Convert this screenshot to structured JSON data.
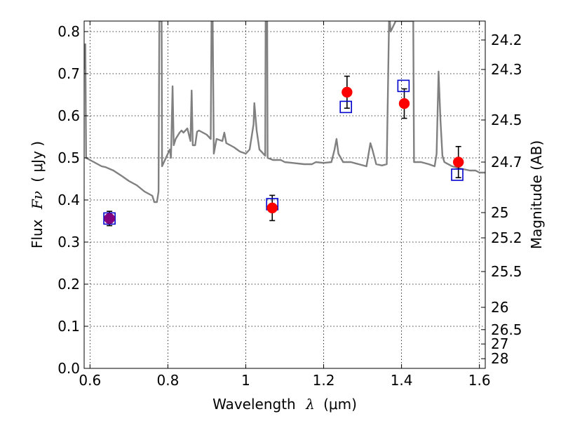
{
  "chart_data": {
    "type": "scatter",
    "title": "",
    "xlabel": "Wavelength",
    "xlabel_symbol": "λ",
    "xlabel_unit": "(μm)",
    "ylabel": "Flux",
    "ylabel_symbol": "Fν",
    "ylabel_unit": "( μJy )",
    "y2label": "Magnitude (AB)",
    "xlim": [
      0.585,
      1.615
    ],
    "ylim": [
      0.0,
      0.825
    ],
    "grid": true,
    "xticks": [
      0.6,
      0.8,
      1.0,
      1.2,
      1.4,
      1.6
    ],
    "xtick_labels": [
      "0.6",
      "0.8",
      "1",
      "1.2",
      "1.4",
      "1.6"
    ],
    "yticks": [
      0.0,
      0.1,
      0.2,
      0.3,
      0.4,
      0.5,
      0.6,
      0.7,
      0.8
    ],
    "ytick_labels": [
      "0.0",
      "0.1",
      "0.2",
      "0.3",
      "0.4",
      "0.5",
      "0.6",
      "0.7",
      "0.8"
    ],
    "magnitude_ticks": [
      {
        "label": "24.2",
        "flux": 0.78
      },
      {
        "label": "24.3",
        "flux": 0.71
      },
      {
        "label": "24.5",
        "flux": 0.59
      },
      {
        "label": "24.7",
        "flux": 0.49
      },
      {
        "label": "25",
        "flux": 0.37
      },
      {
        "label": "25.2",
        "flux": 0.31
      },
      {
        "label": "25.5",
        "flux": 0.23
      },
      {
        "label": "26",
        "flux": 0.145
      },
      {
        "label": "26.5",
        "flux": 0.092
      },
      {
        "label": "27",
        "flux": 0.058
      },
      {
        "label": "28",
        "flux": 0.023
      }
    ],
    "series": [
      {
        "kind": "model-sed",
        "color": "#808080",
        "points": [
          [
            0.585,
            0.71
          ],
          [
            0.588,
            0.77
          ],
          [
            0.59,
            0.5
          ],
          [
            0.6,
            0.495
          ],
          [
            0.61,
            0.49
          ],
          [
            0.62,
            0.485
          ],
          [
            0.63,
            0.48
          ],
          [
            0.64,
            0.478
          ],
          [
            0.66,
            0.47
          ],
          [
            0.68,
            0.458
          ],
          [
            0.7,
            0.445
          ],
          [
            0.72,
            0.435
          ],
          [
            0.74,
            0.42
          ],
          [
            0.76,
            0.41
          ],
          [
            0.765,
            0.395
          ],
          [
            0.772,
            0.395
          ],
          [
            0.776,
            0.42
          ],
          [
            0.778,
            0.825
          ],
          [
            0.784,
            0.825
          ],
          [
            0.785,
            0.48
          ],
          [
            0.79,
            0.49
          ],
          [
            0.8,
            0.51
          ],
          [
            0.805,
            0.52
          ],
          [
            0.808,
            0.5
          ],
          [
            0.812,
            0.67
          ],
          [
            0.815,
            0.53
          ],
          [
            0.82,
            0.545
          ],
          [
            0.83,
            0.56
          ],
          [
            0.835,
            0.565
          ],
          [
            0.84,
            0.56
          ],
          [
            0.85,
            0.57
          ],
          [
            0.858,
            0.54
          ],
          [
            0.861,
            0.66
          ],
          [
            0.864,
            0.53
          ],
          [
            0.87,
            0.53
          ],
          [
            0.875,
            0.562
          ],
          [
            0.88,
            0.565
          ],
          [
            0.9,
            0.555
          ],
          [
            0.905,
            0.55
          ],
          [
            0.91,
            0.545
          ],
          [
            0.912,
            0.825
          ],
          [
            0.915,
            0.825
          ],
          [
            0.918,
            0.51
          ],
          [
            0.925,
            0.545
          ],
          [
            0.94,
            0.54
          ],
          [
            0.945,
            0.56
          ],
          [
            0.95,
            0.535
          ],
          [
            0.96,
            0.53
          ],
          [
            0.97,
            0.525
          ],
          [
            0.985,
            0.515
          ],
          [
            1.0,
            0.51
          ],
          [
            1.01,
            0.52
          ],
          [
            1.02,
            0.58
          ],
          [
            1.022,
            0.63
          ],
          [
            1.028,
            0.565
          ],
          [
            1.035,
            0.52
          ],
          [
            1.045,
            0.51
          ],
          [
            1.05,
            0.505
          ],
          [
            1.051,
            0.825
          ],
          [
            1.055,
            0.825
          ],
          [
            1.056,
            0.5
          ],
          [
            1.07,
            0.495
          ],
          [
            1.09,
            0.495
          ],
          [
            1.1,
            0.49
          ],
          [
            1.12,
            0.488
          ],
          [
            1.15,
            0.485
          ],
          [
            1.17,
            0.485
          ],
          [
            1.18,
            0.49
          ],
          [
            1.2,
            0.488
          ],
          [
            1.22,
            0.49
          ],
          [
            1.228,
            0.52
          ],
          [
            1.233,
            0.545
          ],
          [
            1.238,
            0.51
          ],
          [
            1.25,
            0.49
          ],
          [
            1.27,
            0.49
          ],
          [
            1.29,
            0.485
          ],
          [
            1.31,
            0.48
          ],
          [
            1.32,
            0.535
          ],
          [
            1.325,
            0.52
          ],
          [
            1.335,
            0.485
          ],
          [
            1.35,
            0.482
          ],
          [
            1.362,
            0.485
          ],
          [
            1.368,
            0.825
          ],
          [
            1.37,
            0.825
          ],
          [
            1.372,
            0.8
          ],
          [
            1.385,
            0.825
          ],
          [
            1.395,
            0.825
          ],
          [
            1.405,
            0.825
          ],
          [
            1.42,
            0.825
          ],
          [
            1.43,
            0.825
          ],
          [
            1.432,
            0.49
          ],
          [
            1.45,
            0.49
          ],
          [
            1.47,
            0.485
          ],
          [
            1.485,
            0.48
          ],
          [
            1.49,
            0.51
          ],
          [
            1.495,
            0.705
          ],
          [
            1.5,
            0.59
          ],
          [
            1.505,
            0.505
          ],
          [
            1.51,
            0.49
          ],
          [
            1.53,
            0.48
          ],
          [
            1.55,
            0.475
          ],
          [
            1.575,
            0.47
          ],
          [
            1.59,
            0.47
          ],
          [
            1.6,
            0.465
          ],
          [
            1.615,
            0.465
          ]
        ]
      },
      {
        "kind": "observed",
        "color": "#ff0000",
        "errorbar_color": "#000000",
        "points": [
          {
            "x": 0.65,
            "y": 0.356,
            "err": 0.017
          },
          {
            "x": 1.068,
            "y": 0.381,
            "err": 0.03
          },
          {
            "x": 1.26,
            "y": 0.656,
            "err": 0.038
          },
          {
            "x": 1.407,
            "y": 0.629,
            "err": 0.035
          },
          {
            "x": 1.546,
            "y": 0.49,
            "err": 0.037
          }
        ]
      },
      {
        "kind": "model-synthetic",
        "color": "#0000cc",
        "points": [
          {
            "x": 0.65,
            "y": 0.356
          },
          {
            "x": 1.068,
            "y": 0.39
          },
          {
            "x": 1.257,
            "y": 0.621
          },
          {
            "x": 1.405,
            "y": 0.671
          },
          {
            "x": 1.543,
            "y": 0.46
          }
        ]
      }
    ],
    "overlap_marker": {
      "x": 0.65,
      "y": 0.356,
      "color": "#800080"
    }
  }
}
